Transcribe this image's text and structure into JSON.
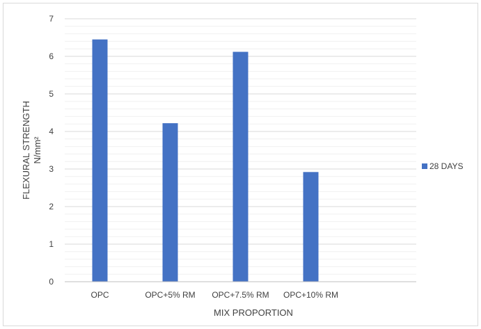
{
  "chart_data": {
    "type": "bar",
    "categories": [
      "OPC",
      "OPC+5% RM",
      "OPC+7.5% RM",
      "OPC+10% RM",
      ""
    ],
    "series": [
      {
        "name": "28 DAYS",
        "values": [
          6.45,
          4.22,
          6.12,
          2.92,
          null
        ],
        "color": "#4472C4"
      }
    ],
    "xlabel": "MIX PROPORTION",
    "ylabel_line1": "FLEXURAL STRENGTH",
    "ylabel_line2": "N/mm²",
    "ylim": [
      0,
      7
    ],
    "yticks": [
      0,
      1,
      2,
      3,
      4,
      5,
      6,
      7
    ],
    "minor_step": 0.2,
    "grid": true,
    "legend_position": "right"
  }
}
